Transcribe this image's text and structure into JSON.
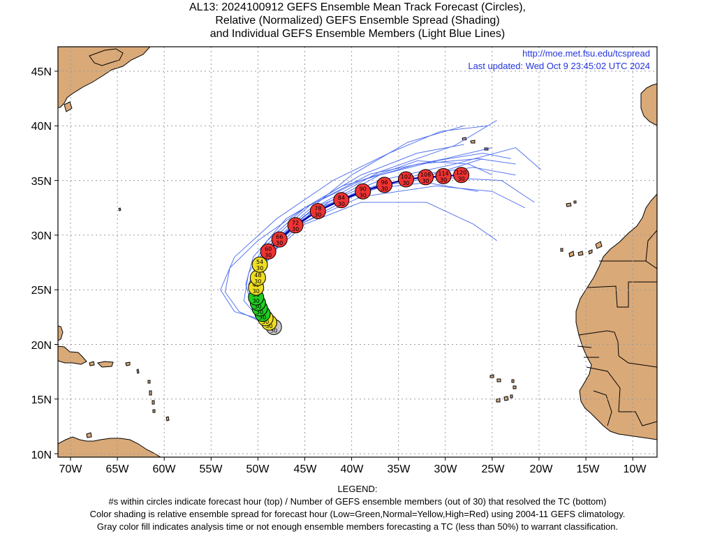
{
  "title": {
    "line1": "AL13: 2024100912 GEFS Ensemble Mean Track Forecast (Circles),",
    "line2": "Relative (Normalized) GEFS Ensemble Spread (Shading)",
    "line3": "and Individual GEFS Ensemble Members (Light Blue Lines)"
  },
  "info": {
    "url": "http://moe.met.fsu.edu/tcspread",
    "updated": "Last updated: Wed Oct 9 23:45:02 UTC 2024"
  },
  "axes": {
    "lat_labels": [
      "45N",
      "40N",
      "35N",
      "30N",
      "25N",
      "20N",
      "15N",
      "10N"
    ],
    "lon_labels": [
      "70W",
      "65W",
      "60W",
      "55W",
      "50W",
      "45W",
      "40W",
      "35W",
      "30W",
      "25W",
      "20W",
      "15W",
      "10W"
    ]
  },
  "colors": {
    "land": "#D9A978",
    "ocean": "#FFFFFF",
    "member_track": "#4466EE",
    "mean_track": "#0000AA",
    "low_spread": "#22CC22",
    "normal_spread": "#EEDD22",
    "high_spread": "#EE3333",
    "analysis": "#C8C8C8",
    "link_text": "#2233DD"
  },
  "legend": {
    "heading": "LEGEND:",
    "line1": "#s within circles indicate forecast hour (top) / Number of GEFS ensemble members (out of 30) that resolved the TC (bottom)",
    "line2": "Color shading is relative ensemble spread for forecast hour (Low=Green,Normal=Yellow,High=Red) using 2004-11 GEFS climatology.",
    "line3": "Gray color fill indicates analysis time or not enough ensemble members forecasting a TC (less than 50%) to warrant classification."
  },
  "forecast_points": [
    {
      "hour": "0",
      "members": "30",
      "spread": "analysis",
      "lat": 21.6,
      "lon": -48.3
    },
    {
      "hour": "6",
      "members": "30",
      "spread": "normal",
      "lat": 22.0,
      "lon": -48.8
    },
    {
      "hour": "12",
      "members": "30",
      "spread": "normal",
      "lat": 22.4,
      "lon": -49.2
    },
    {
      "hour": "18",
      "members": "30",
      "spread": "low",
      "lat": 22.8,
      "lon": -49.5
    },
    {
      "hour": "24",
      "members": "30",
      "spread": "low",
      "lat": 23.3,
      "lon": -49.8
    },
    {
      "hour": "30",
      "members": "30",
      "spread": "low",
      "lat": 23.8,
      "lon": -50.0
    },
    {
      "hour": "36",
      "members": "30",
      "spread": "low",
      "lat": 24.3,
      "lon": -50.2
    },
    {
      "hour": "42",
      "members": "30",
      "spread": "normal",
      "lat": 25.2,
      "lon": -50.2
    },
    {
      "hour": "48",
      "members": "30",
      "spread": "normal",
      "lat": 26.1,
      "lon": -50.0
    },
    {
      "hour": "54",
      "members": "30",
      "spread": "normal",
      "lat": 27.3,
      "lon": -49.8
    },
    {
      "hour": "60",
      "members": "30",
      "spread": "high",
      "lat": 28.5,
      "lon": -48.9
    },
    {
      "hour": "66",
      "members": "30",
      "spread": "high",
      "lat": 29.6,
      "lon": -47.7
    },
    {
      "hour": "72",
      "members": "30",
      "spread": "high",
      "lat": 30.9,
      "lon": -46.0
    },
    {
      "hour": "78",
      "members": "30",
      "spread": "high",
      "lat": 32.2,
      "lon": -43.6
    },
    {
      "hour": "84",
      "members": "30",
      "spread": "high",
      "lat": 33.2,
      "lon": -41.1
    },
    {
      "hour": "90",
      "members": "30",
      "spread": "high",
      "lat": 34.0,
      "lon": -38.8
    },
    {
      "hour": "96",
      "members": "30",
      "spread": "high",
      "lat": 34.6,
      "lon": -36.5
    },
    {
      "hour": "102",
      "members": "30",
      "spread": "high",
      "lat": 35.1,
      "lon": -34.2
    },
    {
      "hour": "108",
      "members": "30",
      "spread": "high",
      "lat": 35.3,
      "lon": -32.1
    },
    {
      "hour": "114",
      "members": "30",
      "spread": "high",
      "lat": 35.4,
      "lon": -30.2
    },
    {
      "hour": "120",
      "members": "30",
      "spread": "high",
      "lat": 35.5,
      "lon": -28.3
    }
  ],
  "member_tracks": [
    [
      [
        -48.3,
        21.6
      ],
      [
        -50.0,
        23.0
      ],
      [
        -50.5,
        25.0
      ],
      [
        -49.5,
        27.5
      ],
      [
        -46.5,
        30.5
      ],
      [
        -40.0,
        33.5
      ],
      [
        -33.0,
        35.5
      ],
      [
        -27.0,
        36.2
      ],
      [
        -22.5,
        35.5
      ]
    ],
    [
      [
        -48.3,
        21.6
      ],
      [
        -49.8,
        23.5
      ],
      [
        -50.0,
        26.0
      ],
      [
        -48.5,
        29.0
      ],
      [
        -44.0,
        32.5
      ],
      [
        -37.0,
        35.8
      ],
      [
        -29.0,
        38.2
      ],
      [
        -24.5,
        40.5
      ]
    ],
    [
      [
        -48.3,
        21.6
      ],
      [
        -50.5,
        23.5
      ],
      [
        -51.0,
        25.5
      ],
      [
        -49.5,
        28.5
      ],
      [
        -45.0,
        32.0
      ],
      [
        -40.0,
        35.5
      ],
      [
        -34.0,
        38.5
      ],
      [
        -28.0,
        40.0
      ]
    ],
    [
      [
        -48.3,
        21.6
      ],
      [
        -50.5,
        23.0
      ],
      [
        -51.3,
        25.5
      ],
      [
        -50.5,
        28.0
      ],
      [
        -47.0,
        31.5
      ],
      [
        -41.0,
        34.5
      ],
      [
        -33.0,
        36.5
      ],
      [
        -26.5,
        37.0
      ],
      [
        -22.5,
        36.5
      ]
    ],
    [
      [
        -48.3,
        21.6
      ],
      [
        -50.0,
        23.0
      ],
      [
        -50.5,
        25.0
      ],
      [
        -49.0,
        28.0
      ],
      [
        -45.0,
        31.0
      ],
      [
        -39.0,
        33.0
      ],
      [
        -32.0,
        33.0
      ],
      [
        -27.0,
        31.0
      ],
      [
        -24.5,
        29.5
      ]
    ],
    [
      [
        -48.3,
        21.6
      ],
      [
        -49.8,
        23.0
      ],
      [
        -50.2,
        25.0
      ],
      [
        -49.0,
        28.0
      ],
      [
        -45.5,
        31.0
      ],
      [
        -39.0,
        33.5
      ],
      [
        -31.0,
        34.5
      ],
      [
        -25.0,
        34.0
      ],
      [
        -21.5,
        32.5
      ]
    ],
    [
      [
        -48.3,
        21.6
      ],
      [
        -50.2,
        23.5
      ],
      [
        -50.4,
        25.8
      ],
      [
        -48.8,
        28.8
      ],
      [
        -45.0,
        31.8
      ],
      [
        -38.5,
        34.3
      ],
      [
        -31.0,
        35.3
      ],
      [
        -24.0,
        35.0
      ],
      [
        -20.5,
        33.0
      ]
    ],
    [
      [
        -48.3,
        21.6
      ],
      [
        -50.0,
        23.5
      ],
      [
        -50.0,
        26.0
      ],
      [
        -48.0,
        29.5
      ],
      [
        -43.5,
        32.5
      ],
      [
        -37.5,
        34.5
      ],
      [
        -31.5,
        35.5
      ],
      [
        -26.0,
        37.0
      ]
    ],
    [
      [
        -48.3,
        21.6
      ],
      [
        -49.8,
        23.2
      ],
      [
        -50.3,
        25.5
      ],
      [
        -48.8,
        29.0
      ],
      [
        -44.0,
        32.5
      ],
      [
        -37.0,
        35.0
      ],
      [
        -29.0,
        36.5
      ],
      [
        -22.5,
        38.0
      ],
      [
        -19.8,
        36.0
      ]
    ],
    [
      [
        -48.3,
        21.6
      ],
      [
        -50.6,
        23.3
      ],
      [
        -50.8,
        25.8
      ],
      [
        -49.2,
        29.0
      ],
      [
        -44.5,
        32.7
      ],
      [
        -38.0,
        35.6
      ],
      [
        -30.0,
        37.0
      ],
      [
        -25.0,
        38.0
      ]
    ],
    [
      [
        -48.3,
        21.6
      ],
      [
        -50.0,
        23.8
      ],
      [
        -50.2,
        26.3
      ],
      [
        -48.5,
        29.3
      ],
      [
        -44.0,
        32.2
      ],
      [
        -38.5,
        34.2
      ],
      [
        -32.0,
        34.8
      ],
      [
        -26.5,
        34.0
      ]
    ],
    [
      [
        -48.3,
        21.6
      ],
      [
        -50.5,
        22.5
      ],
      [
        -52.5,
        23.0
      ],
      [
        -54.0,
        25.0
      ],
      [
        -52.5,
        28.0
      ],
      [
        -48.0,
        31.5
      ],
      [
        -42.0,
        35.0
      ],
      [
        -36.0,
        37.5
      ],
      [
        -30.5,
        39.5
      ],
      [
        -25.5,
        40.0
      ]
    ],
    [
      [
        -48.3,
        21.6
      ],
      [
        -50.0,
        22.2
      ],
      [
        -52.0,
        23.0
      ],
      [
        -53.5,
        24.8
      ],
      [
        -53.0,
        27.0
      ],
      [
        -50.0,
        29.5
      ],
      [
        -45.0,
        32.5
      ],
      [
        -39.0,
        35.0
      ],
      [
        -33.0,
        36.8
      ],
      [
        -27.5,
        36.5
      ],
      [
        -25.0,
        35.5
      ]
    ],
    [
      [
        -48.3,
        21.6
      ],
      [
        -50.0,
        22.5
      ],
      [
        -51.5,
        24.0
      ],
      [
        -51.0,
        26.5
      ],
      [
        -49.0,
        29.5
      ],
      [
        -45.0,
        32.5
      ],
      [
        -39.0,
        35.5
      ],
      [
        -33.0,
        37.5
      ],
      [
        -28.0,
        38.3
      ]
    ],
    [
      [
        -48.3,
        21.6
      ],
      [
        -49.5,
        22.8
      ],
      [
        -50.0,
        24.5
      ],
      [
        -49.5,
        27.0
      ],
      [
        -47.0,
        30.0
      ],
      [
        -42.5,
        33.0
      ],
      [
        -37.0,
        35.5
      ],
      [
        -31.0,
        36.8
      ],
      [
        -26.0,
        37.5
      ],
      [
        -23.0,
        37.0
      ]
    ]
  ]
}
